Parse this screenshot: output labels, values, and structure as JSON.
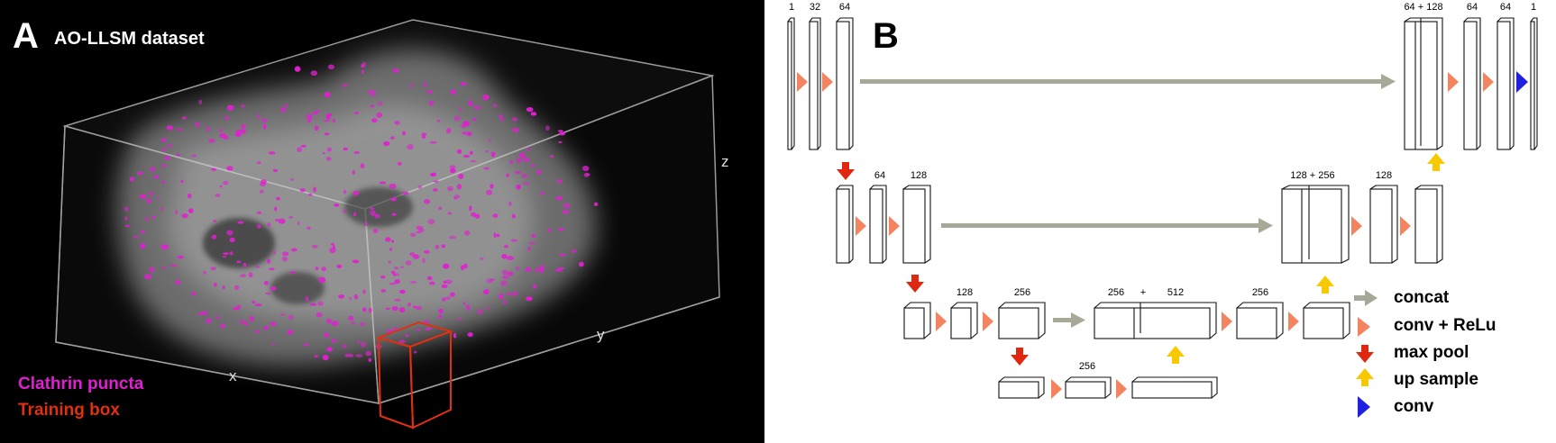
{
  "panel_a": {
    "letter": "A",
    "title": "AO-LLSM dataset",
    "axes": {
      "x": "x",
      "y": "y",
      "z": "z"
    },
    "legend": [
      {
        "label": "Clathrin puncta",
        "color": "#e020d0"
      },
      {
        "label": "Training box",
        "color": "#e03010"
      }
    ]
  },
  "panel_b": {
    "letter": "B",
    "channel_labels": {
      "l1": [
        "1",
        "32",
        "64"
      ],
      "l1_right": [
        "64 + 128",
        "64",
        "64",
        "1"
      ],
      "l2": [
        "64",
        "128"
      ],
      "l2_right": [
        "128 + 256",
        "128"
      ],
      "l3": [
        "128",
        "256"
      ],
      "l3_concat": [
        "256",
        "+",
        "512"
      ],
      "l3_right": [
        "256"
      ],
      "l4": [
        "256"
      ]
    },
    "legend": [
      {
        "label": "concat",
        "color": "#a8a898",
        "icon": "concat-arrow-icon"
      },
      {
        "label": "conv + ReLu",
        "color": "#f4845f",
        "icon": "conv-relu-triangle-icon"
      },
      {
        "label": "max pool",
        "color": "#e02810",
        "icon": "max-pool-arrow-icon"
      },
      {
        "label": "up sample",
        "color": "#f8c800",
        "icon": "up-sample-arrow-icon"
      },
      {
        "label": "conv",
        "color": "#2020e0",
        "icon": "conv-triangle-icon"
      }
    ]
  }
}
